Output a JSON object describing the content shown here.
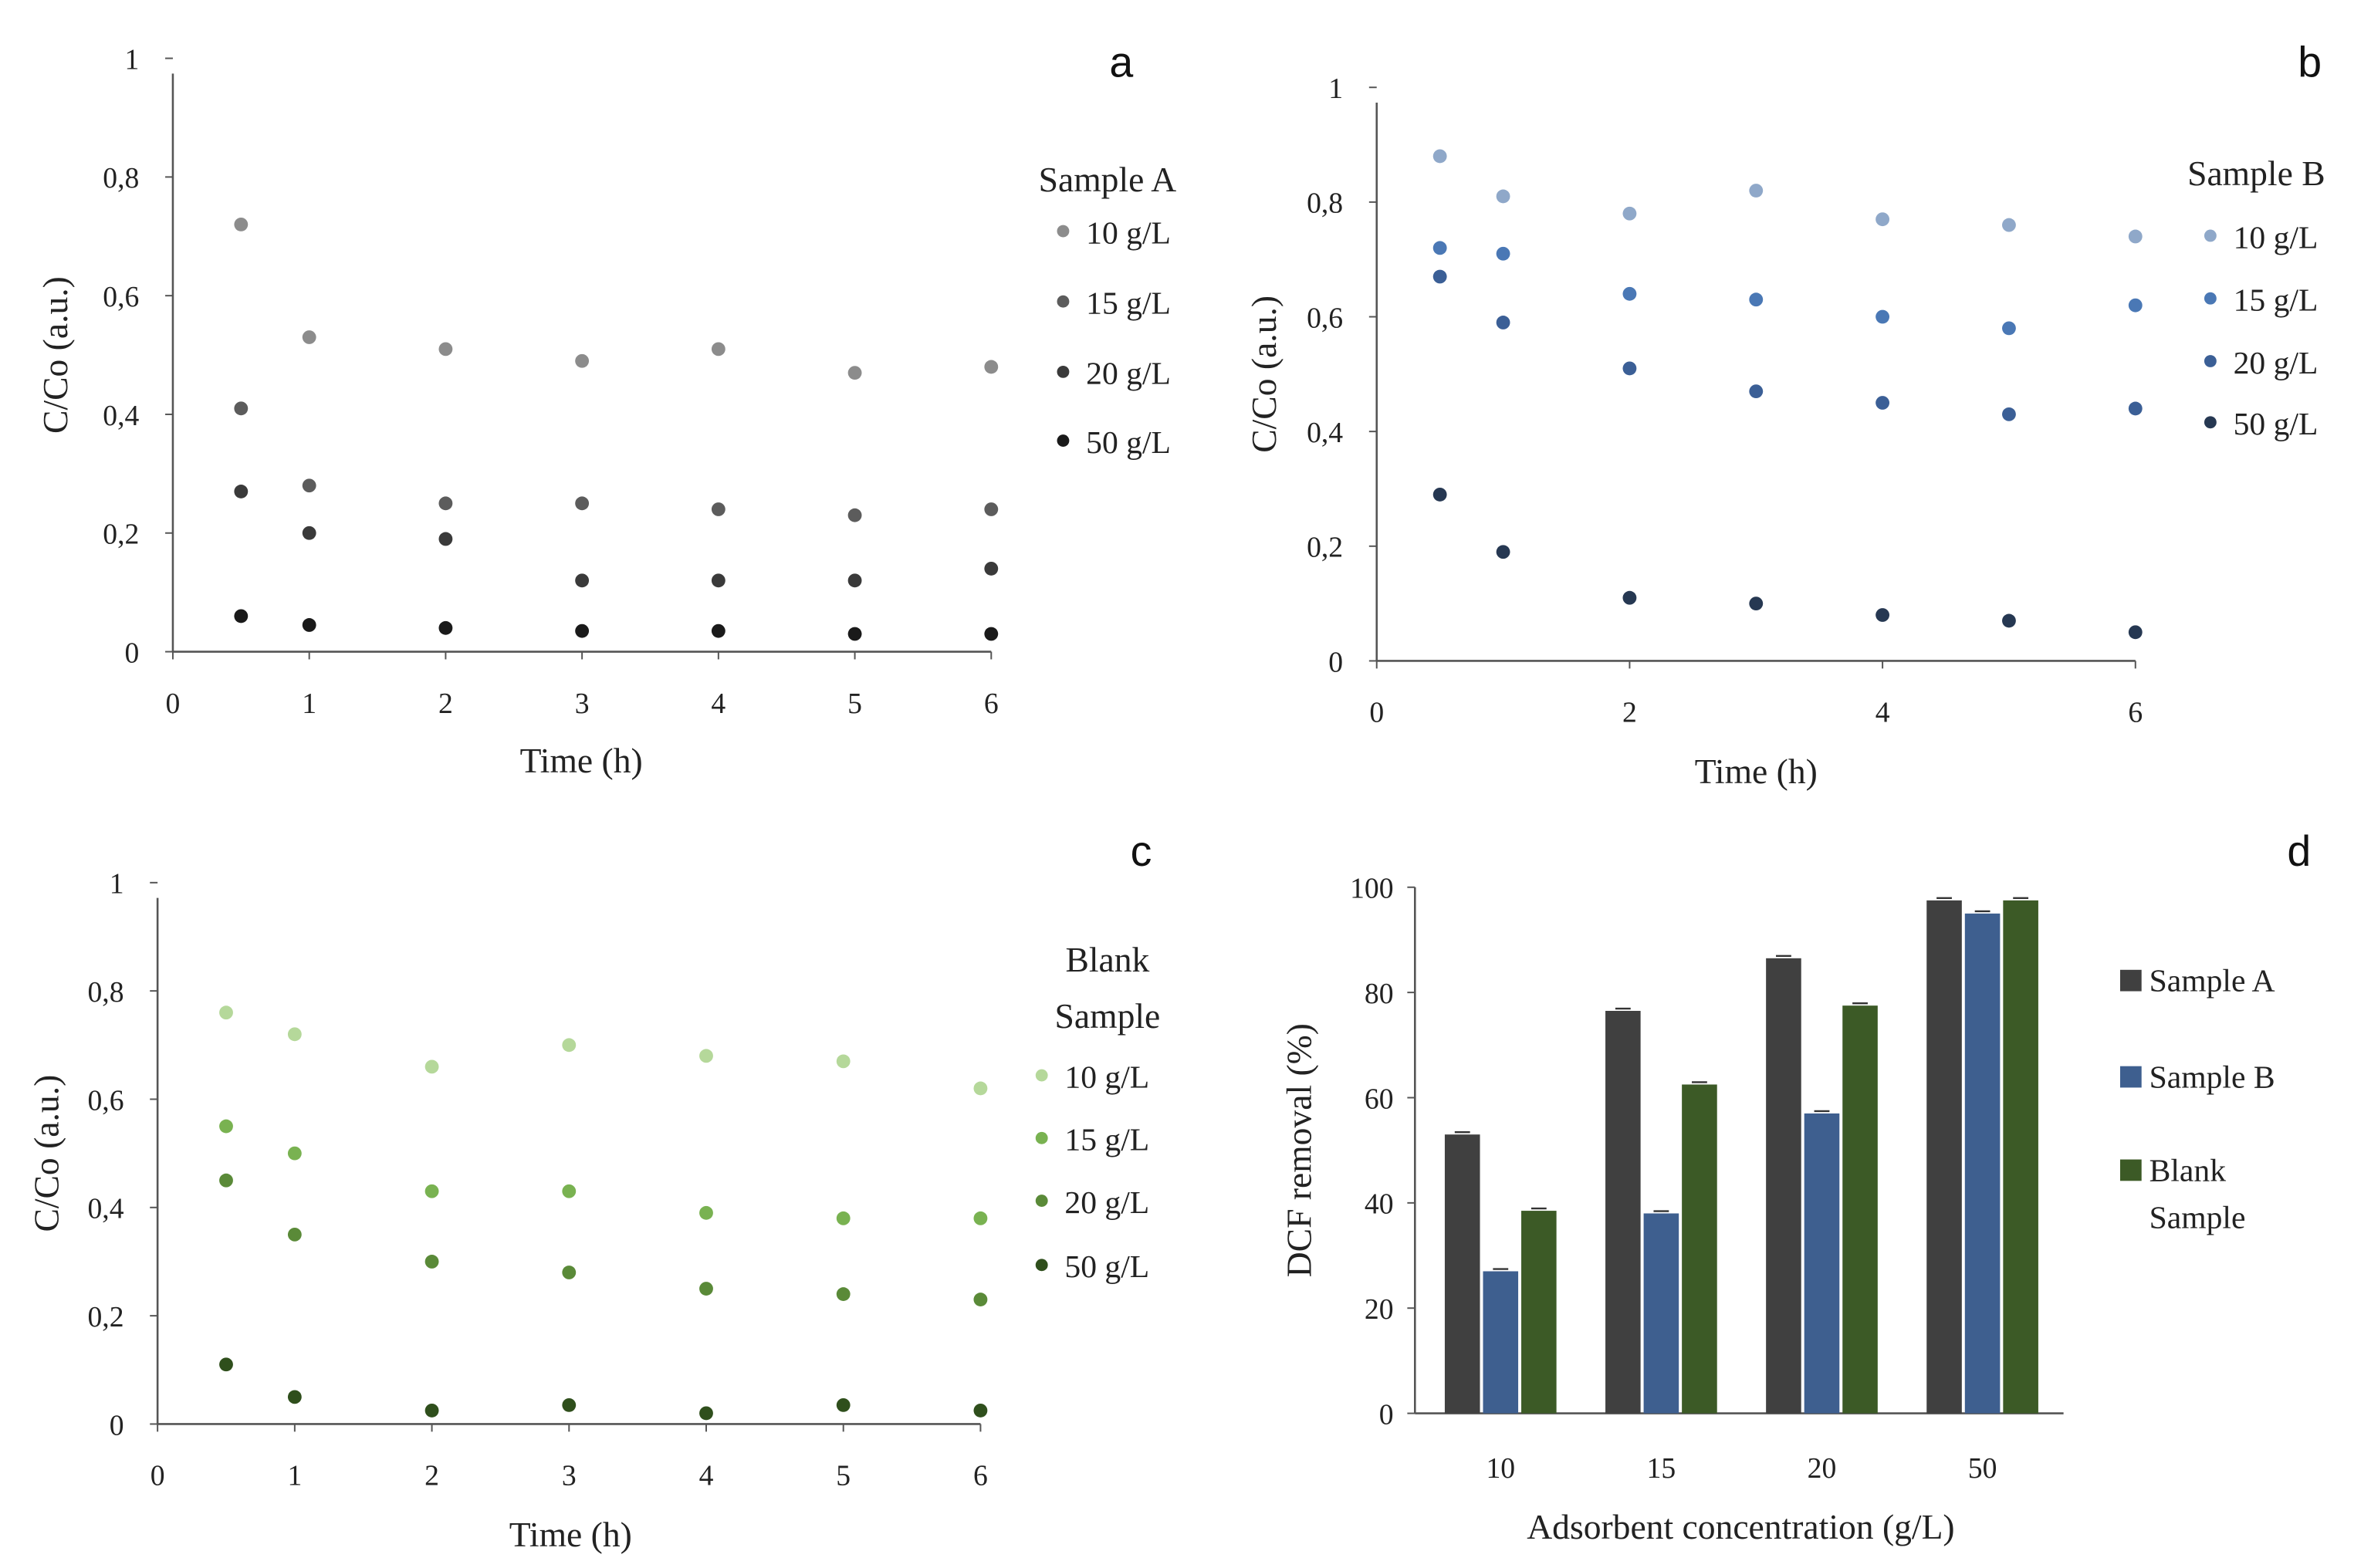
{
  "chart_data": [
    {
      "panel": "a",
      "type": "scatter",
      "xlabel": "Time (h)",
      "ylabel": "C/Co (a.u.)",
      "xlim": [
        0,
        6
      ],
      "ylim": [
        0,
        1
      ],
      "xticks": [
        "0",
        "1",
        "2",
        "3",
        "4",
        "5",
        "6"
      ],
      "yticks": [
        "0",
        "0,2",
        "0,4",
        "0,6",
        "0,8",
        "1"
      ],
      "legend_title": [
        "Sample A"
      ],
      "x": [
        0.5,
        1,
        2,
        3,
        4,
        5,
        6
      ],
      "series": [
        {
          "name": "10 g/L",
          "color": "#8c8c8c",
          "values": [
            0.72,
            0.53,
            0.51,
            0.49,
            0.51,
            0.47,
            0.48
          ]
        },
        {
          "name": "15 g/L",
          "color": "#5c5c5c",
          "values": [
            0.41,
            0.28,
            0.25,
            0.25,
            0.24,
            0.23,
            0.24
          ]
        },
        {
          "name": "20 g/L",
          "color": "#3a3a3a",
          "values": [
            0.27,
            0.2,
            0.19,
            0.12,
            0.12,
            0.12,
            0.14
          ]
        },
        {
          "name": "50 g/L",
          "color": "#1a1a1a",
          "values": [
            0.06,
            0.045,
            0.04,
            0.035,
            0.035,
            0.03,
            0.03
          ]
        }
      ]
    },
    {
      "panel": "b",
      "type": "scatter",
      "xlabel": "Time (h)",
      "ylabel": "C/Co (a.u.)",
      "xlim": [
        0,
        6
      ],
      "ylim": [
        0,
        1
      ],
      "xticks": [
        "0",
        "2",
        "4",
        "6"
      ],
      "yticks": [
        "0",
        "0,2",
        "0,4",
        "0,6",
        "0,8",
        "1"
      ],
      "legend_title": [
        "Sample B"
      ],
      "x": [
        0.5,
        1,
        2,
        3,
        4,
        5,
        6
      ],
      "series": [
        {
          "name": "10 g/L",
          "color": "#8fa8c9",
          "values": [
            0.88,
            0.81,
            0.78,
            0.82,
            0.77,
            0.76,
            0.74
          ]
        },
        {
          "name": "15 g/L",
          "color": "#4a78b5",
          "values": [
            0.72,
            0.71,
            0.64,
            0.63,
            0.6,
            0.58,
            0.62
          ]
        },
        {
          "name": "20 g/L",
          "color": "#3b5f96",
          "values": [
            0.67,
            0.59,
            0.51,
            0.47,
            0.45,
            0.43,
            0.44
          ]
        },
        {
          "name": "50 g/L",
          "color": "#263852",
          "values": [
            0.29,
            0.19,
            0.11,
            0.1,
            0.08,
            0.07,
            0.05
          ]
        }
      ]
    },
    {
      "panel": "c",
      "type": "scatter",
      "xlabel": "Time (h)",
      "ylabel": "C/Co (a.u.)",
      "xlim": [
        0,
        6
      ],
      "ylim": [
        0,
        1
      ],
      "xticks": [
        "0",
        "1",
        "2",
        "3",
        "4",
        "5",
        "6"
      ],
      "yticks": [
        "0",
        "0,2",
        "0,4",
        "0,6",
        "0,8",
        "1"
      ],
      "legend_title": [
        "Blank",
        "Sample"
      ],
      "x": [
        0.5,
        1,
        2,
        3,
        4,
        5,
        6
      ],
      "series": [
        {
          "name": "10 g/L",
          "color": "#b5d89a",
          "values": [
            0.76,
            0.72,
            0.66,
            0.7,
            0.68,
            0.67,
            0.62
          ]
        },
        {
          "name": "15 g/L",
          "color": "#79b251",
          "values": [
            0.55,
            0.5,
            0.43,
            0.43,
            0.39,
            0.38,
            0.38
          ]
        },
        {
          "name": "20 g/L",
          "color": "#5a8a38",
          "values": [
            0.45,
            0.35,
            0.3,
            0.28,
            0.25,
            0.24,
            0.23
          ]
        },
        {
          "name": "50 g/L",
          "color": "#2f4f1c",
          "values": [
            0.11,
            0.05,
            0.025,
            0.035,
            0.02,
            0.035,
            0.025
          ]
        }
      ]
    },
    {
      "panel": "d",
      "type": "bar",
      "xlabel": "Adsorbent concentration (g/L)",
      "ylabel": "DCF removal (%)",
      "ylim": [
        0,
        100
      ],
      "categories": [
        "10",
        "15",
        "20",
        "50"
      ],
      "yticks": [
        "0",
        "20",
        "40",
        "60",
        "80",
        "100"
      ],
      "series": [
        {
          "name": "Sample A",
          "legend_lines": [
            "Sample A"
          ],
          "color": "#404040",
          "values": [
            53,
            76.5,
            86.5,
            97.5
          ]
        },
        {
          "name": "Sample B",
          "legend_lines": [
            "Sample B"
          ],
          "color": "#3e5f8f",
          "values": [
            27,
            38,
            57,
            95
          ]
        },
        {
          "name": "Blank Sample",
          "legend_lines": [
            "Blank",
            "Sample"
          ],
          "color": "#3c5a26",
          "values": [
            38.5,
            62.5,
            77.5,
            97.5
          ]
        }
      ]
    }
  ]
}
